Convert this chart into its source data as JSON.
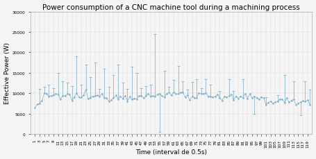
{
  "title": "Power consumption of a CNC machine tool during a machining process",
  "xlabel": "Time (interval de 0.5s)",
  "ylabel": "Effective Power (W)",
  "ylim": [
    0,
    30000
  ],
  "yticks": [
    0,
    5000,
    10000,
    15000,
    20000,
    25000,
    30000
  ],
  "xlim": [
    -1,
    121
  ],
  "n_points": 120,
  "line_color": "#7cafc8",
  "background_color": "#f5f5f5",
  "grid_color": "#d0d0d0",
  "title_fontsize": 7.5,
  "axis_label_fontsize": 6.5,
  "tick_fontsize": 4.2
}
